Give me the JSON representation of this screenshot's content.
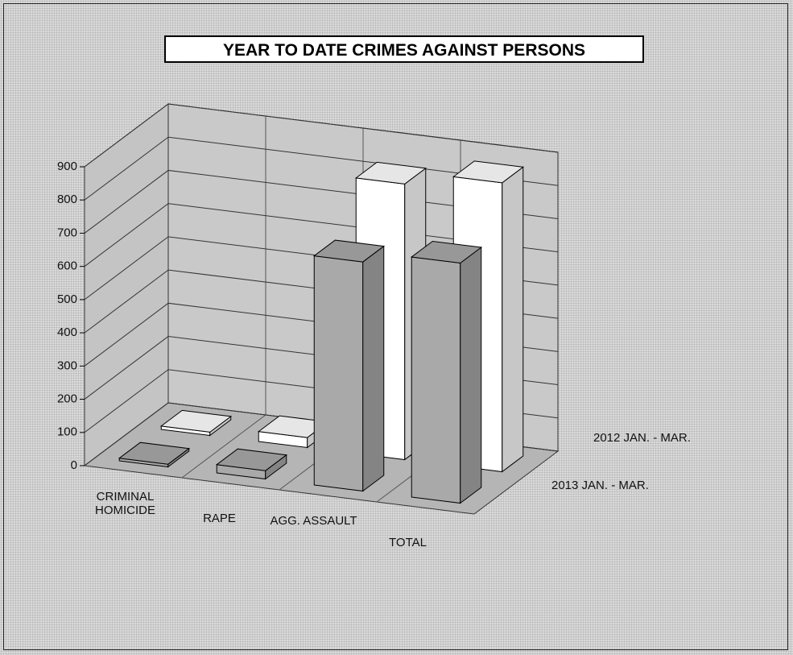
{
  "chart_data": {
    "type": "bar3d",
    "title": "YEAR TO DATE CRIMES AGAINST PERSONS",
    "categories": [
      "CRIMINAL HOMICIDE",
      "RAPE",
      "AGG. ASSAULT",
      "TOTAL"
    ],
    "series": [
      {
        "name": "2012 JAN. - MAR.",
        "color": "#ffffff",
        "values": [
          10,
          30,
          830,
          870
        ]
      },
      {
        "name": "2013 JAN. - MAR.",
        "color": "#a9a9a9",
        "values": [
          8,
          25,
          690,
          723
        ]
      }
    ],
    "ylim": [
      0,
      900
    ],
    "yticks": [
      0,
      100,
      200,
      300,
      400,
      500,
      600,
      700,
      800,
      900
    ],
    "grid": true
  }
}
